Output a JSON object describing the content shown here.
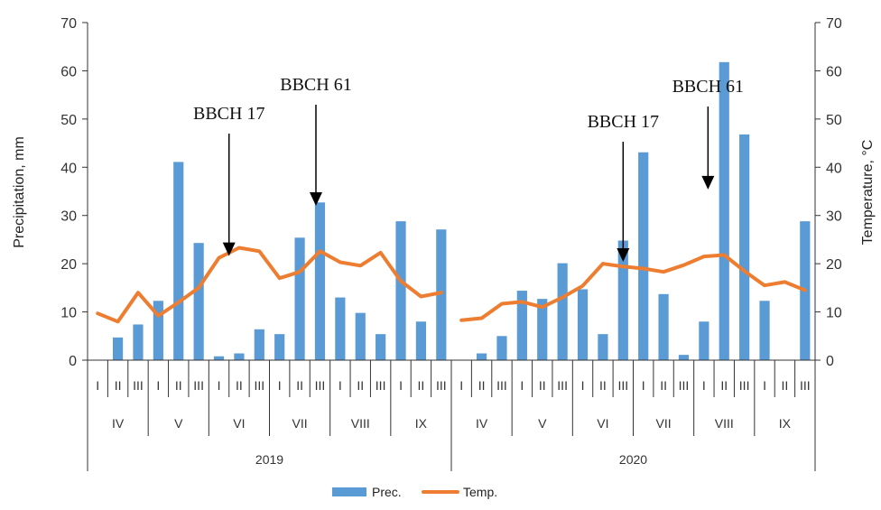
{
  "chart_data": {
    "type": "bar+line",
    "title": "",
    "years": [
      "2019",
      "2020"
    ],
    "months": [
      "IV",
      "V",
      "VI",
      "VII",
      "VIII",
      "IX"
    ],
    "decades": [
      "I",
      "II",
      "III"
    ],
    "ylabel_left": "Precipitation, mm",
    "ylabel_right": "Temperature,  °C",
    "ylim_left": [
      0,
      70
    ],
    "ylim_right": [
      0,
      70
    ],
    "yticks": [
      "0",
      "10",
      "20",
      "30",
      "40",
      "50",
      "60",
      "70"
    ],
    "series": [
      {
        "name": "Prec.",
        "type": "bar",
        "color": "#5b9bd5",
        "values": [
          0,
          4.7,
          7.4,
          12.3,
          41.1,
          24.3,
          0.8,
          1.4,
          6.4,
          5.4,
          25.4,
          32.7,
          13.0,
          9.8,
          5.4,
          28.8,
          8.0,
          27.1,
          0,
          1.4,
          5.0,
          14.4,
          12.7,
          20.1,
          14.7,
          5.4,
          24.8,
          43.1,
          13.7,
          1.1,
          8.0,
          61.8,
          46.8,
          12.3,
          0,
          28.8
        ]
      },
      {
        "name": "Temp.",
        "type": "line",
        "color": "#ed7d31",
        "values": [
          9.7,
          8.0,
          14.0,
          9.2,
          12.0,
          15.0,
          21.2,
          23.3,
          22.6,
          17.0,
          18.3,
          22.6,
          20.3,
          19.6,
          22.3,
          16.4,
          13.2,
          14.0,
          8.3,
          8.7,
          11.7,
          12.1,
          11.0,
          13.0,
          15.4,
          20.0,
          19.4,
          19.0,
          18.3,
          19.7,
          21.5,
          21.8,
          18.5,
          15.5,
          16.2,
          14.5
        ]
      }
    ],
    "annotations": [
      {
        "text": "BBCH 17",
        "index": 6.5,
        "tip_y": 21.6
      },
      {
        "text": "BBCH 61",
        "index": 10.8,
        "tip_y": 32.0
      },
      {
        "text": "BBCH 17",
        "index": 26.0,
        "tip_y": 20.4
      },
      {
        "text": "BBCH 61",
        "index": 30.2,
        "tip_y": 35.4
      }
    ],
    "legend_position": "bottom",
    "grid": false
  }
}
